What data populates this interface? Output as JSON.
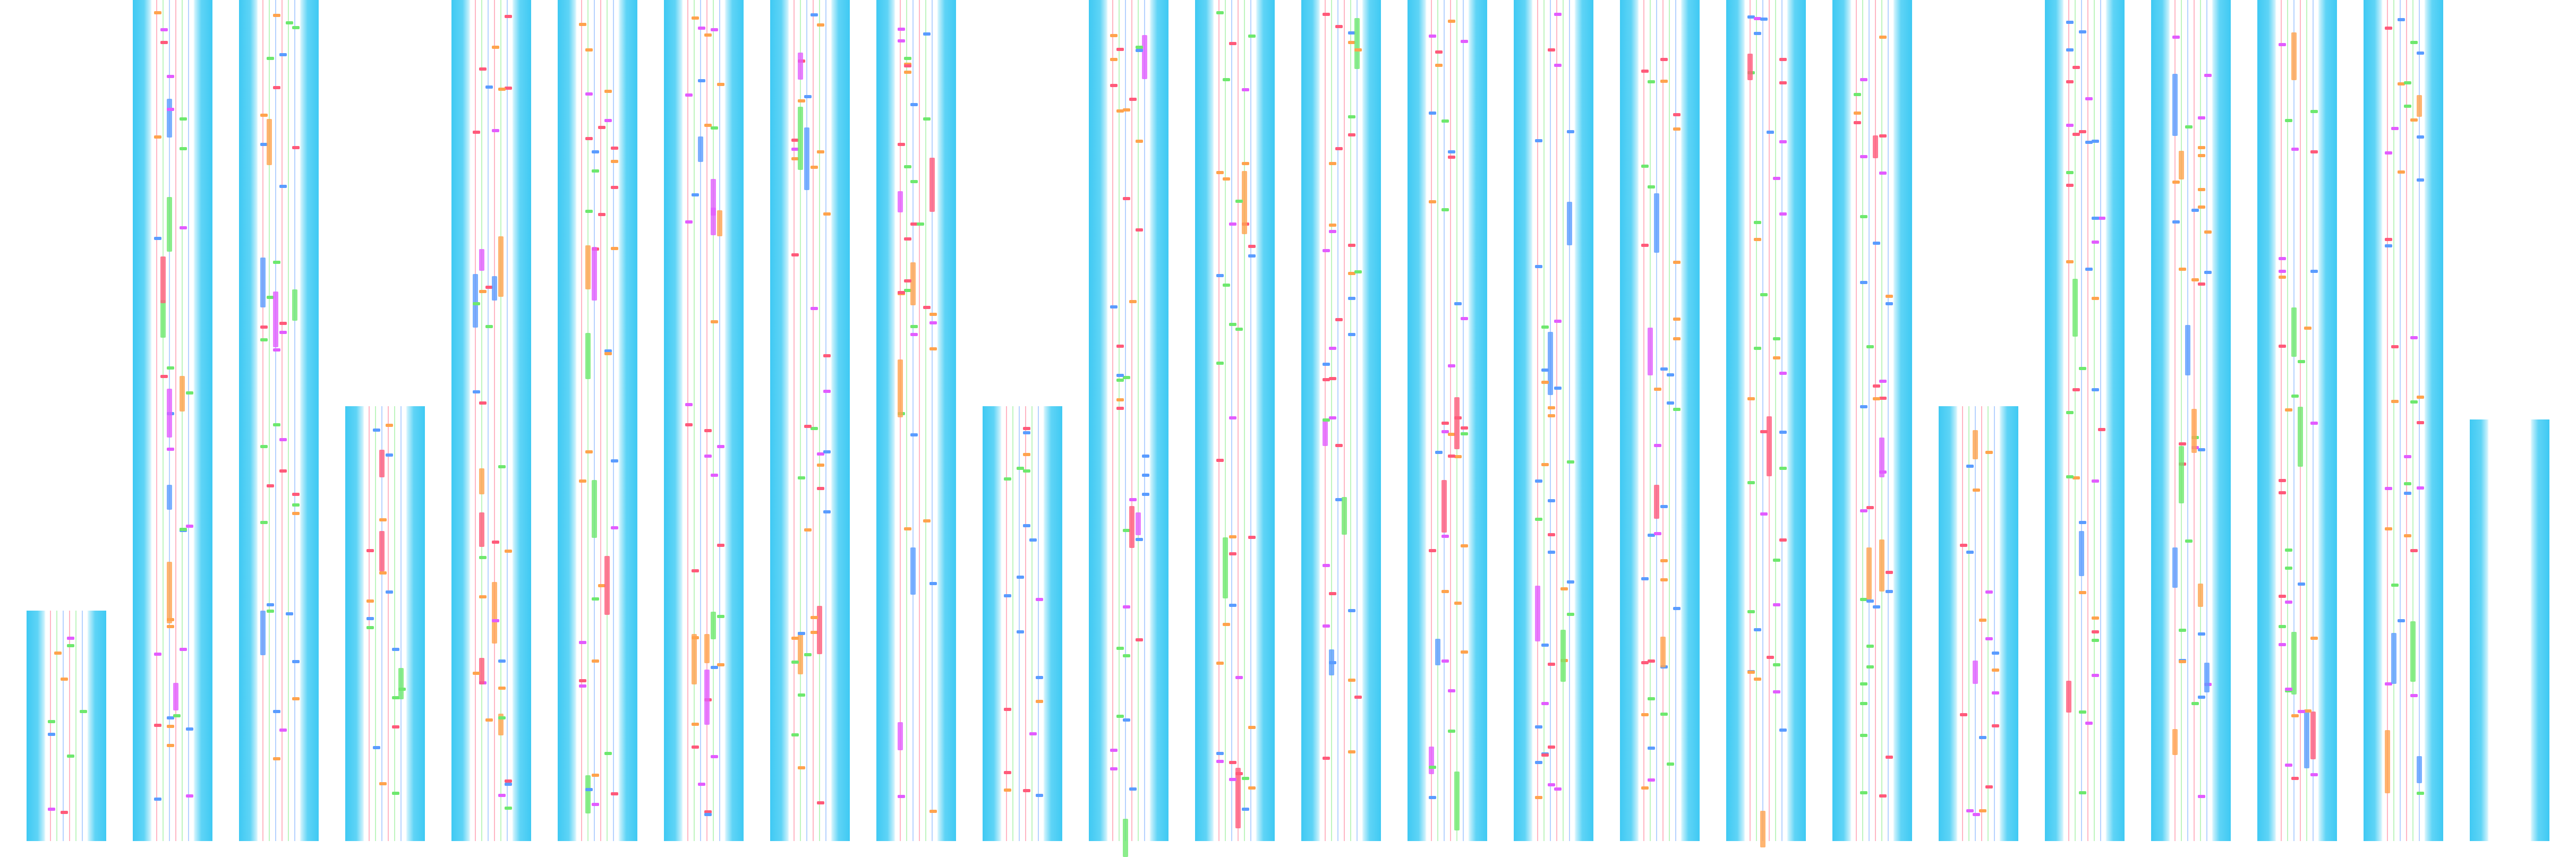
{
  "colors": {
    "border": "#3fc9f3",
    "border_light": "#c9f1fc",
    "playfield": "#ffffff",
    "lane_red": "#ff5a7a",
    "lane_green": "#6ee86e",
    "lane_blue": "#5a9cff",
    "note_orange": "#ffa34d",
    "note_magenta": "#e25cff"
  },
  "icons": [
    "note-marker",
    "hold-note",
    "arrow-marker"
  ]
}
